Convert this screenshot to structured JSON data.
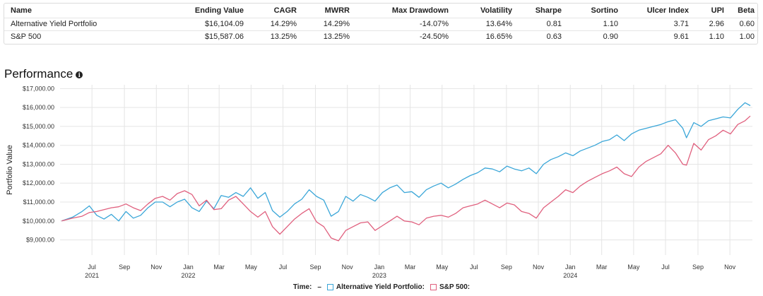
{
  "stats": {
    "headers": [
      "Name",
      "Ending Value",
      "CAGR",
      "MWRR",
      "Max Drawdown",
      "Volatility",
      "Sharpe",
      "Sortino",
      "Ulcer Index",
      "UPI",
      "Beta"
    ],
    "rows": [
      [
        "Alternative Yield Portfolio",
        "$16,104.09",
        "14.29%",
        "14.29%",
        "-14.07%",
        "13.64%",
        "0.81",
        "1.10",
        "3.71",
        "2.96",
        "0.60"
      ],
      [
        "S&P 500",
        "$15,587.06",
        "13.25%",
        "13.25%",
        "-24.50%",
        "16.65%",
        "0.63",
        "0.90",
        "9.61",
        "1.10",
        "1.00"
      ]
    ]
  },
  "performance": {
    "title": "Performance",
    "info_icon": "info-icon"
  },
  "legend": {
    "time_label": "Time:",
    "time_value": "–",
    "series": [
      {
        "label": "Alternative Yield Portfolio:",
        "color": "#3aa6d8"
      },
      {
        "label": "S&P 500:",
        "color": "#e0607e"
      }
    ]
  },
  "chart_data": {
    "type": "line",
    "title": "",
    "xlabel": "",
    "ylabel": "Portfolio Value",
    "ylim": [
      8200,
      17200
    ],
    "yticks": [
      9000,
      10000,
      11000,
      12000,
      13000,
      14000,
      15000,
      16000,
      17000
    ],
    "ytick_labels": [
      "$9,000.00",
      "$10,000.00",
      "$11,000.00",
      "$12,000.00",
      "$13,000.00",
      "$14,000.00",
      "$15,000.00",
      "$16,000.00",
      "$17,000.00"
    ],
    "x_range": [
      "2021-05-01",
      "2024-12-14"
    ],
    "x_ticks": [
      {
        "date": "2021-07-01",
        "label": "Jul",
        "year": "2021"
      },
      {
        "date": "2021-09-01",
        "label": "Sep",
        "year": ""
      },
      {
        "date": "2021-11-01",
        "label": "Nov",
        "year": ""
      },
      {
        "date": "2022-01-01",
        "label": "Jan",
        "year": "2022"
      },
      {
        "date": "2022-03-01",
        "label": "Mar",
        "year": ""
      },
      {
        "date": "2022-05-01",
        "label": "May",
        "year": ""
      },
      {
        "date": "2022-07-01",
        "label": "Jul",
        "year": ""
      },
      {
        "date": "2022-09-01",
        "label": "Sep",
        "year": ""
      },
      {
        "date": "2022-11-01",
        "label": "Nov",
        "year": ""
      },
      {
        "date": "2023-01-01",
        "label": "Jan",
        "year": "2023"
      },
      {
        "date": "2023-03-01",
        "label": "Mar",
        "year": ""
      },
      {
        "date": "2023-05-01",
        "label": "May",
        "year": ""
      },
      {
        "date": "2023-07-01",
        "label": "Jul",
        "year": ""
      },
      {
        "date": "2023-09-01",
        "label": "Sep",
        "year": ""
      },
      {
        "date": "2023-11-01",
        "label": "Nov",
        "year": ""
      },
      {
        "date": "2024-01-01",
        "label": "Jan",
        "year": "2024"
      },
      {
        "date": "2024-03-01",
        "label": "Mar",
        "year": ""
      },
      {
        "date": "2024-05-01",
        "label": "May",
        "year": ""
      },
      {
        "date": "2024-07-01",
        "label": "Jul",
        "year": ""
      },
      {
        "date": "2024-09-01",
        "label": "Sep",
        "year": ""
      },
      {
        "date": "2024-11-01",
        "label": "Nov",
        "year": ""
      }
    ],
    "grid": true,
    "series": [
      {
        "name": "Alternative Yield Portfolio",
        "color": "#3aa6d8",
        "points": [
          [
            "2021-05-04",
            10000
          ],
          [
            "2021-05-25",
            10200
          ],
          [
            "2021-06-12",
            10500
          ],
          [
            "2021-06-26",
            10800
          ],
          [
            "2021-07-10",
            10300
          ],
          [
            "2021-07-24",
            10100
          ],
          [
            "2021-08-07",
            10350
          ],
          [
            "2021-08-21",
            10000
          ],
          [
            "2021-09-04",
            10500
          ],
          [
            "2021-09-18",
            10150
          ],
          [
            "2021-10-02",
            10300
          ],
          [
            "2021-10-16",
            10700
          ],
          [
            "2021-10-30",
            11000
          ],
          [
            "2021-11-13",
            11000
          ],
          [
            "2021-11-27",
            10750
          ],
          [
            "2021-12-11",
            11000
          ],
          [
            "2021-12-25",
            11150
          ],
          [
            "2022-01-08",
            10700
          ],
          [
            "2022-01-22",
            10500
          ],
          [
            "2022-02-05",
            11050
          ],
          [
            "2022-02-19",
            10650
          ],
          [
            "2022-03-05",
            11350
          ],
          [
            "2022-03-19",
            11250
          ],
          [
            "2022-04-02",
            11500
          ],
          [
            "2022-04-16",
            11300
          ],
          [
            "2022-04-30",
            11750
          ],
          [
            "2022-05-14",
            11200
          ],
          [
            "2022-05-28",
            11500
          ],
          [
            "2022-06-11",
            10550
          ],
          [
            "2022-06-25",
            10200
          ],
          [
            "2022-07-09",
            10500
          ],
          [
            "2022-07-23",
            10900
          ],
          [
            "2022-08-06",
            11150
          ],
          [
            "2022-08-20",
            11650
          ],
          [
            "2022-09-03",
            11300
          ],
          [
            "2022-09-17",
            11100
          ],
          [
            "2022-10-01",
            10250
          ],
          [
            "2022-10-15",
            10500
          ],
          [
            "2022-10-29",
            11300
          ],
          [
            "2022-11-12",
            11050
          ],
          [
            "2022-11-26",
            11400
          ],
          [
            "2022-12-10",
            11250
          ],
          [
            "2022-12-24",
            11050
          ],
          [
            "2023-01-07",
            11500
          ],
          [
            "2023-01-21",
            11750
          ],
          [
            "2023-02-04",
            11900
          ],
          [
            "2023-02-18",
            11500
          ],
          [
            "2023-03-04",
            11550
          ],
          [
            "2023-03-18",
            11250
          ],
          [
            "2023-04-01",
            11650
          ],
          [
            "2023-04-15",
            11850
          ],
          [
            "2023-04-29",
            12000
          ],
          [
            "2023-05-13",
            11750
          ],
          [
            "2023-05-27",
            11950
          ],
          [
            "2023-06-10",
            12200
          ],
          [
            "2023-06-24",
            12400
          ],
          [
            "2023-07-08",
            12550
          ],
          [
            "2023-07-22",
            12800
          ],
          [
            "2023-08-05",
            12750
          ],
          [
            "2023-08-19",
            12600
          ],
          [
            "2023-09-02",
            12900
          ],
          [
            "2023-09-16",
            12750
          ],
          [
            "2023-09-30",
            12650
          ],
          [
            "2023-10-14",
            12800
          ],
          [
            "2023-10-28",
            12500
          ],
          [
            "2023-11-11",
            13000
          ],
          [
            "2023-11-25",
            13250
          ],
          [
            "2023-12-09",
            13400
          ],
          [
            "2023-12-23",
            13600
          ],
          [
            "2024-01-06",
            13450
          ],
          [
            "2024-01-20",
            13700
          ],
          [
            "2024-02-03",
            13850
          ],
          [
            "2024-02-17",
            14000
          ],
          [
            "2024-03-02",
            14200
          ],
          [
            "2024-03-16",
            14300
          ],
          [
            "2024-03-30",
            14550
          ],
          [
            "2024-04-13",
            14250
          ],
          [
            "2024-04-27",
            14600
          ],
          [
            "2024-05-11",
            14800
          ],
          [
            "2024-05-25",
            14900
          ],
          [
            "2024-06-08",
            15000
          ],
          [
            "2024-06-22",
            15100
          ],
          [
            "2024-07-06",
            15250
          ],
          [
            "2024-07-20",
            15350
          ],
          [
            "2024-08-03",
            14900
          ],
          [
            "2024-08-10",
            14400
          ],
          [
            "2024-08-24",
            15200
          ],
          [
            "2024-09-07",
            15000
          ],
          [
            "2024-09-21",
            15300
          ],
          [
            "2024-10-05",
            15400
          ],
          [
            "2024-10-19",
            15500
          ],
          [
            "2024-11-02",
            15450
          ],
          [
            "2024-11-16",
            15900
          ],
          [
            "2024-11-30",
            16250
          ],
          [
            "2024-12-10",
            16100
          ]
        ]
      },
      {
        "name": "S&P 500",
        "color": "#e0607e",
        "points": [
          [
            "2021-05-04",
            10000
          ],
          [
            "2021-05-25",
            10150
          ],
          [
            "2021-06-12",
            10250
          ],
          [
            "2021-06-26",
            10450
          ],
          [
            "2021-07-10",
            10500
          ],
          [
            "2021-07-24",
            10600
          ],
          [
            "2021-08-07",
            10700
          ],
          [
            "2021-08-21",
            10750
          ],
          [
            "2021-09-04",
            10900
          ],
          [
            "2021-09-18",
            10700
          ],
          [
            "2021-10-02",
            10550
          ],
          [
            "2021-10-16",
            10900
          ],
          [
            "2021-10-30",
            11200
          ],
          [
            "2021-11-13",
            11300
          ],
          [
            "2021-11-27",
            11100
          ],
          [
            "2021-12-11",
            11450
          ],
          [
            "2021-12-25",
            11600
          ],
          [
            "2022-01-08",
            11400
          ],
          [
            "2022-01-22",
            10800
          ],
          [
            "2022-02-05",
            11100
          ],
          [
            "2022-02-19",
            10600
          ],
          [
            "2022-03-05",
            10650
          ],
          [
            "2022-03-19",
            11100
          ],
          [
            "2022-04-02",
            11300
          ],
          [
            "2022-04-16",
            10900
          ],
          [
            "2022-04-30",
            10500
          ],
          [
            "2022-05-14",
            10200
          ],
          [
            "2022-05-28",
            10500
          ],
          [
            "2022-06-11",
            9700
          ],
          [
            "2022-06-25",
            9300
          ],
          [
            "2022-07-09",
            9700
          ],
          [
            "2022-07-23",
            10100
          ],
          [
            "2022-08-06",
            10400
          ],
          [
            "2022-08-20",
            10650
          ],
          [
            "2022-09-03",
            9950
          ],
          [
            "2022-09-17",
            9700
          ],
          [
            "2022-10-01",
            9100
          ],
          [
            "2022-10-15",
            8950
          ],
          [
            "2022-10-29",
            9500
          ],
          [
            "2022-11-12",
            9700
          ],
          [
            "2022-11-26",
            9900
          ],
          [
            "2022-12-10",
            9950
          ],
          [
            "2022-12-24",
            9500
          ],
          [
            "2023-01-07",
            9750
          ],
          [
            "2023-01-21",
            10000
          ],
          [
            "2023-02-04",
            10250
          ],
          [
            "2023-02-18",
            10000
          ],
          [
            "2023-03-04",
            9950
          ],
          [
            "2023-03-18",
            9800
          ],
          [
            "2023-04-01",
            10150
          ],
          [
            "2023-04-15",
            10250
          ],
          [
            "2023-04-29",
            10300
          ],
          [
            "2023-05-13",
            10200
          ],
          [
            "2023-05-27",
            10400
          ],
          [
            "2023-06-10",
            10700
          ],
          [
            "2023-06-24",
            10800
          ],
          [
            "2023-07-08",
            10900
          ],
          [
            "2023-07-22",
            11100
          ],
          [
            "2023-08-05",
            10900
          ],
          [
            "2023-08-19",
            10700
          ],
          [
            "2023-09-02",
            10950
          ],
          [
            "2023-09-16",
            10850
          ],
          [
            "2023-09-30",
            10500
          ],
          [
            "2023-10-14",
            10400
          ],
          [
            "2023-10-28",
            10150
          ],
          [
            "2023-11-11",
            10700
          ],
          [
            "2023-11-25",
            11000
          ],
          [
            "2023-12-09",
            11300
          ],
          [
            "2023-12-23",
            11650
          ],
          [
            "2024-01-06",
            11500
          ],
          [
            "2024-01-20",
            11850
          ],
          [
            "2024-02-03",
            12100
          ],
          [
            "2024-02-17",
            12300
          ],
          [
            "2024-03-02",
            12500
          ],
          [
            "2024-03-16",
            12650
          ],
          [
            "2024-03-30",
            12850
          ],
          [
            "2024-04-13",
            12500
          ],
          [
            "2024-04-27",
            12350
          ],
          [
            "2024-05-11",
            12850
          ],
          [
            "2024-05-25",
            13150
          ],
          [
            "2024-06-08",
            13350
          ],
          [
            "2024-06-22",
            13550
          ],
          [
            "2024-07-06",
            14000
          ],
          [
            "2024-07-20",
            13600
          ],
          [
            "2024-08-03",
            13000
          ],
          [
            "2024-08-10",
            12950
          ],
          [
            "2024-08-24",
            14100
          ],
          [
            "2024-09-07",
            13750
          ],
          [
            "2024-09-21",
            14300
          ],
          [
            "2024-10-05",
            14500
          ],
          [
            "2024-10-19",
            14800
          ],
          [
            "2024-11-02",
            14600
          ],
          [
            "2024-11-16",
            15100
          ],
          [
            "2024-11-30",
            15300
          ],
          [
            "2024-12-10",
            15550
          ]
        ]
      }
    ]
  }
}
